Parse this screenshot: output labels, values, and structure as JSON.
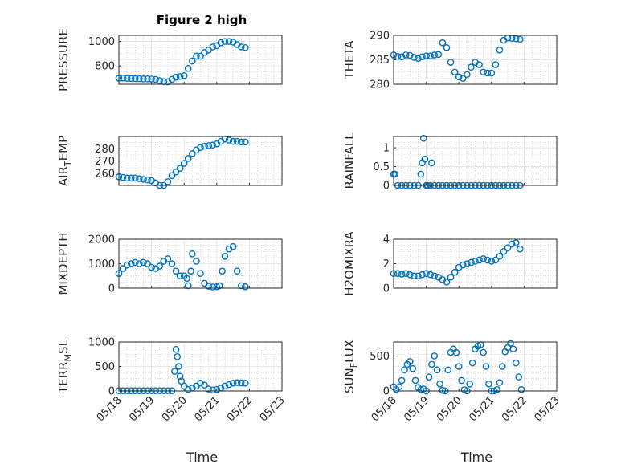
{
  "figure": {
    "title": "Figure 2 high",
    "marker_color": "#0072BD",
    "grid": "minor dotted",
    "x_tick_labels": [
      "05/18",
      "05/19",
      "05/20",
      "05/21",
      "05/22",
      "05/23"
    ],
    "x_label": "Time"
  },
  "chart_data": [
    {
      "type": "scatter",
      "panel": "top-left",
      "title": "Figure 2 high",
      "ylabel": "PRESSURE",
      "xlabel": "",
      "ylim": [
        650,
        1050
      ],
      "yticks": [
        800,
        1000
      ],
      "ytick_labels": [
        "800",
        "1000"
      ],
      "x": [
        "05/18 00:00",
        "05/18 03:00",
        "05/18 06:00",
        "05/18 09:00",
        "05/18 12:00",
        "05/18 15:00",
        "05/18 18:00",
        "05/18 21:00",
        "05/19 00:00",
        "05/19 03:00",
        "05/19 06:00",
        "05/19 09:00",
        "05/19 12:00",
        "05/19 15:00",
        "05/19 18:00",
        "05/19 21:00",
        "05/20 00:00",
        "05/20 03:00",
        "05/20 06:00",
        "05/20 09:00",
        "05/20 12:00",
        "05/20 15:00",
        "05/20 18:00",
        "05/20 21:00",
        "05/21 00:00",
        "05/21 03:00",
        "05/21 06:00",
        "05/21 09:00",
        "05/21 12:00",
        "05/21 15:00",
        "05/21 18:00",
        "05/21 21:00"
      ],
      "y": [
        700,
        700,
        698,
        697,
        696,
        695,
        694,
        694,
        693,
        690,
        680,
        672,
        670,
        690,
        708,
        714,
        720,
        780,
        840,
        880,
        880,
        910,
        930,
        955,
        965,
        990,
        1000,
        1000,
        995,
        975,
        955,
        950
      ]
    },
    {
      "type": "scatter",
      "panel": "top-right",
      "title": "",
      "ylabel": "THETA",
      "xlabel": "",
      "ylim": [
        280,
        290
      ],
      "yticks": [
        280,
        285,
        290
      ],
      "ytick_labels": [
        "280",
        "285",
        "290"
      ],
      "x": [
        "05/18 00:00",
        "05/18 03:00",
        "05/18 06:00",
        "05/18 09:00",
        "05/18 12:00",
        "05/18 15:00",
        "05/18 18:00",
        "05/18 21:00",
        "05/19 00:00",
        "05/19 03:00",
        "05/19 06:00",
        "05/19 09:00",
        "05/19 12:00",
        "05/19 15:00",
        "05/19 18:00",
        "05/19 21:00",
        "05/20 00:00",
        "05/20 03:00",
        "05/20 06:00",
        "05/20 09:00",
        "05/20 12:00",
        "05/20 15:00",
        "05/20 18:00",
        "05/20 21:00",
        "05/21 00:00",
        "05/21 03:00",
        "05/21 06:00",
        "05/21 09:00",
        "05/21 12:00",
        "05/21 15:00",
        "05/21 18:00",
        "05/21 21:00"
      ],
      "y": [
        286,
        285.7,
        285.6,
        286,
        285.9,
        285.5,
        285.3,
        285.6,
        285.8,
        285.8,
        286,
        286.1,
        288.5,
        287.5,
        284.5,
        282.5,
        281.5,
        281.2,
        282,
        283.5,
        284.5,
        284,
        282.5,
        282.3,
        282.3,
        284,
        287,
        289,
        289.5,
        289.4,
        289.3,
        289.2
      ]
    },
    {
      "type": "scatter",
      "panel": "row2-left",
      "title": "",
      "ylabel": "AIR_TEMP",
      "xlabel": "",
      "ylim": [
        250,
        290
      ],
      "yticks": [
        260,
        270,
        280
      ],
      "ytick_labels": [
        "260",
        "270",
        "280"
      ],
      "x": [
        "05/18 00:00",
        "05/18 03:00",
        "05/18 06:00",
        "05/18 09:00",
        "05/18 12:00",
        "05/18 15:00",
        "05/18 18:00",
        "05/18 21:00",
        "05/19 00:00",
        "05/19 03:00",
        "05/19 06:00",
        "05/19 09:00",
        "05/19 12:00",
        "05/19 15:00",
        "05/19 18:00",
        "05/19 21:00",
        "05/20 00:00",
        "05/20 03:00",
        "05/20 06:00",
        "05/20 09:00",
        "05/20 12:00",
        "05/20 15:00",
        "05/20 18:00",
        "05/20 21:00",
        "05/21 00:00",
        "05/21 03:00",
        "05/21 06:00",
        "05/21 09:00",
        "05/21 12:00",
        "05/21 15:00",
        "05/21 18:00",
        "05/21 21:00"
      ],
      "y": [
        257,
        256.5,
        256,
        256,
        256,
        255.5,
        255,
        254.5,
        254,
        252,
        250,
        250,
        253,
        258,
        261,
        264,
        268,
        272,
        276,
        279,
        281,
        282,
        282.5,
        283,
        284,
        286,
        288,
        287,
        286,
        286,
        285.5,
        285.5
      ]
    },
    {
      "type": "scatter",
      "panel": "row2-right",
      "title": "",
      "ylabel": "RAINFALL",
      "xlabel": "",
      "ylim": [
        0,
        1.3
      ],
      "yticks": [
        0,
        0.5,
        1
      ],
      "ytick_labels": [
        "0",
        "0.5",
        "1"
      ],
      "x": [
        "05/18 00:00",
        "05/18 01:00",
        "05/18 03:00",
        "05/18 06:00",
        "05/18 09:00",
        "05/18 12:00",
        "05/18 15:00",
        "05/18 18:00",
        "05/18 20:00",
        "05/18 21:00",
        "05/18 22:00",
        "05/18 23:00",
        "05/19 00:00",
        "05/19 01:00",
        "05/19 03:00",
        "05/19 04:00",
        "05/19 06:00",
        "05/19 09:00",
        "05/19 12:00",
        "05/19 15:00",
        "05/19 18:00",
        "05/19 21:00",
        "05/20 00:00",
        "05/20 03:00",
        "05/20 06:00",
        "05/20 09:00",
        "05/20 12:00",
        "05/20 15:00",
        "05/20 18:00",
        "05/20 21:00",
        "05/21 00:00",
        "05/21 03:00",
        "05/21 06:00",
        "05/21 09:00",
        "05/21 12:00",
        "05/21 15:00",
        "05/21 18:00",
        "05/21 21:00"
      ],
      "y": [
        0.3,
        0.3,
        0,
        0,
        0,
        0,
        0,
        0,
        0.3,
        0.6,
        1.25,
        0.7,
        0,
        0,
        0,
        0.6,
        0,
        0,
        0,
        0,
        0,
        0,
        0,
        0,
        0,
        0,
        0,
        0,
        0,
        0,
        0,
        0,
        0,
        0,
        0,
        0,
        0,
        0
      ]
    },
    {
      "type": "scatter",
      "panel": "row3-left",
      "title": "",
      "ylabel": "MIXDEPTH",
      "xlabel": "",
      "ylim": [
        0,
        2000
      ],
      "yticks": [
        0,
        1000,
        2000
      ],
      "ytick_labels": [
        "0",
        "1000",
        "2000"
      ],
      "x": [
        "05/18 00:00",
        "05/18 03:00",
        "05/18 06:00",
        "05/18 09:00",
        "05/18 12:00",
        "05/18 15:00",
        "05/18 18:00",
        "05/18 21:00",
        "05/19 00:00",
        "05/19 03:00",
        "05/19 06:00",
        "05/19 09:00",
        "05/19 12:00",
        "05/19 15:00",
        "05/19 18:00",
        "05/19 21:00",
        "05/20 00:00",
        "05/20 02:00",
        "05/20 03:00",
        "05/20 05:00",
        "05/20 06:00",
        "05/20 09:00",
        "05/20 12:00",
        "05/20 15:00",
        "05/20 18:00",
        "05/20 21:00",
        "05/21 00:00",
        "05/21 02:00",
        "05/21 04:00",
        "05/21 06:00",
        "05/21 09:00",
        "05/21 12:00",
        "05/21 15:00",
        "05/21 18:00",
        "05/21 21:00"
      ],
      "y": [
        600,
        800,
        950,
        1000,
        1050,
        1000,
        1050,
        1000,
        850,
        800,
        900,
        1100,
        1200,
        1000,
        700,
        500,
        500,
        400,
        100,
        700,
        1400,
        1100,
        600,
        200,
        80,
        50,
        60,
        100,
        700,
        1300,
        1600,
        1700,
        700,
        100,
        60
      ]
    },
    {
      "type": "scatter",
      "panel": "row3-right",
      "title": "",
      "ylabel": "H2OMIXRA",
      "xlabel": "",
      "ylim": [
        0,
        4
      ],
      "yticks": [
        0,
        2,
        4
      ],
      "ytick_labels": [
        "0",
        "2",
        "4"
      ],
      "x": [
        "05/18 00:00",
        "05/18 03:00",
        "05/18 06:00",
        "05/18 09:00",
        "05/18 12:00",
        "05/18 15:00",
        "05/18 18:00",
        "05/18 21:00",
        "05/19 00:00",
        "05/19 03:00",
        "05/19 06:00",
        "05/19 09:00",
        "05/19 12:00",
        "05/19 15:00",
        "05/19 18:00",
        "05/19 21:00",
        "05/20 00:00",
        "05/20 03:00",
        "05/20 06:00",
        "05/20 09:00",
        "05/20 12:00",
        "05/20 15:00",
        "05/20 18:00",
        "05/20 21:00",
        "05/21 00:00",
        "05/21 03:00",
        "05/21 06:00",
        "05/21 09:00",
        "05/21 12:00",
        "05/21 15:00",
        "05/21 18:00",
        "05/21 21:00"
      ],
      "y": [
        1.2,
        1.2,
        1.15,
        1.2,
        1.1,
        1.0,
        1.0,
        1.1,
        1.2,
        1.1,
        1.0,
        0.9,
        0.7,
        0.5,
        0.9,
        1.3,
        1.7,
        1.9,
        2.0,
        2.1,
        2.2,
        2.3,
        2.4,
        2.3,
        2.2,
        2.3,
        2.6,
        3.0,
        3.3,
        3.6,
        3.7,
        3.2
      ]
    },
    {
      "type": "scatter",
      "panel": "bottom-left",
      "title": "",
      "ylabel": "TERR_MSL",
      "xlabel": "Time",
      "ylim": [
        0,
        1000
      ],
      "yticks": [
        0,
        500,
        1000
      ],
      "ytick_labels": [
        "0",
        "500",
        "1000"
      ],
      "x": [
        "05/18 00:00",
        "05/18 03:00",
        "05/18 06:00",
        "05/18 09:00",
        "05/18 12:00",
        "05/18 15:00",
        "05/18 18:00",
        "05/18 21:00",
        "05/19 00:00",
        "05/19 03:00",
        "05/19 06:00",
        "05/19 09:00",
        "05/19 12:00",
        "05/19 15:00",
        "05/19 17:00",
        "05/19 18:00",
        "05/19 19:00",
        "05/19 20:00",
        "05/19 21:00",
        "05/19 22:00",
        "05/20 00:00",
        "05/20 03:00",
        "05/20 06:00",
        "05/20 09:00",
        "05/20 12:00",
        "05/20 15:00",
        "05/20 18:00",
        "05/20 21:00",
        "05/21 00:00",
        "05/21 03:00",
        "05/21 06:00",
        "05/21 09:00",
        "05/21 12:00",
        "05/21 15:00",
        "05/21 18:00",
        "05/21 21:00"
      ],
      "y": [
        5,
        5,
        5,
        5,
        5,
        5,
        5,
        5,
        5,
        5,
        5,
        5,
        5,
        5,
        400,
        850,
        700,
        500,
        300,
        200,
        100,
        30,
        60,
        100,
        160,
        120,
        40,
        20,
        30,
        60,
        100,
        130,
        160,
        170,
        165,
        160
      ]
    },
    {
      "type": "scatter",
      "panel": "bottom-right",
      "title": "",
      "ylabel": "SUN_FLUX",
      "xlabel": "Time",
      "ylim": [
        0,
        700
      ],
      "yticks": [
        0,
        500
      ],
      "ytick_labels": [
        "0",
        "500"
      ],
      "x": [
        "05/18 00:00",
        "05/18 02:00",
        "05/18 04:00",
        "05/18 06:00",
        "05/18 08:00",
        "05/18 10:00",
        "05/18 12:00",
        "05/18 14:00",
        "05/18 16:00",
        "05/18 18:00",
        "05/18 20:00",
        "05/18 22:00",
        "05/19 00:00",
        "05/19 02:00",
        "05/19 04:00",
        "05/19 06:00",
        "05/19 08:00",
        "05/19 10:00",
        "05/19 12:00",
        "05/19 14:00",
        "05/19 16:00",
        "05/19 18:00",
        "05/19 20:00",
        "05/19 22:00",
        "05/20 00:00",
        "05/20 02:00",
        "05/20 04:00",
        "05/20 06:00",
        "05/20 08:00",
        "05/20 10:00",
        "05/20 12:00",
        "05/20 14:00",
        "05/20 16:00",
        "05/20 18:00",
        "05/20 20:00",
        "05/20 22:00",
        "05/21 00:00",
        "05/21 02:00",
        "05/21 04:00",
        "05/21 06:00",
        "05/21 08:00",
        "05/21 10:00",
        "05/21 12:00",
        "05/21 14:00",
        "05/21 16:00",
        "05/21 18:00",
        "05/21 20:00",
        "05/21 22:00"
      ],
      "y": [
        60,
        20,
        60,
        150,
        300,
        380,
        420,
        320,
        150,
        50,
        20,
        30,
        0,
        200,
        380,
        500,
        300,
        100,
        10,
        0,
        300,
        550,
        600,
        550,
        350,
        150,
        20,
        0,
        100,
        400,
        600,
        640,
        660,
        550,
        350,
        100,
        0,
        0,
        20,
        120,
        350,
        560,
        620,
        680,
        600,
        400,
        200,
        20
      ]
    }
  ]
}
